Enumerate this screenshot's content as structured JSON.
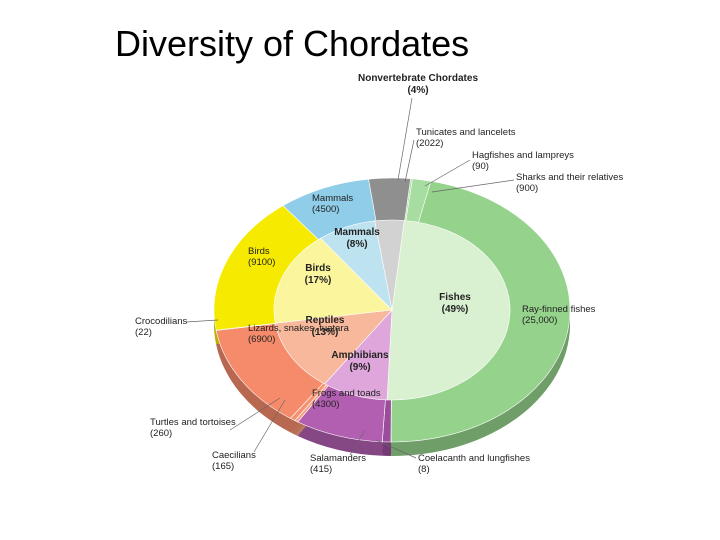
{
  "chart_data": {
    "type": "nested_pie",
    "title": "Diversity of Chordates",
    "inner": {
      "categories": [
        "Fishes",
        "Amphibians",
        "Reptiles",
        "Birds",
        "Mammals",
        "Nonvertebrate Chordates"
      ],
      "values": [
        49,
        9,
        13,
        17,
        8,
        4
      ],
      "value_labels": [
        "(49%)",
        "(9%)",
        "(13%)",
        "(17%)",
        "(8%)",
        "(4%)"
      ],
      "colors": [
        "#d9f0d1",
        "#dfa6dc",
        "#f8b89c",
        "#fbf69e",
        "#bde3f0",
        "#d2d2d2"
      ]
    },
    "outer": {
      "categories": [
        "Hagfishes and lampreys",
        "Sharks and their relatives",
        "Ray-finned fishes",
        "Coelacanth and lungfishes",
        "Salamanders",
        "Frogs and toads",
        "Caecilians",
        "Turtles and tortoises",
        "Lizards, snakes, tuatara",
        "Crocodilians",
        "Birds",
        "Mammals",
        "Tunicates and lancelets"
      ],
      "values": [
        90,
        900,
        25000,
        8,
        415,
        4300,
        165,
        260,
        6900,
        22,
        9100,
        4500,
        2022
      ],
      "value_labels": [
        "(90)",
        "(900)",
        "(25,000)",
        "(8)",
        "(415)",
        "(4300)",
        "(165)",
        "(260)",
        "(6900)",
        "(22)",
        "(9100)",
        "(4500)",
        "(2022)"
      ],
      "colors": [
        "#a8dda2",
        "#a8dda2",
        "#95d28c",
        "#95d28c",
        "#9a4d9a",
        "#b35fb1",
        "#f6a384",
        "#f59272",
        "#f58b6b",
        "#f0805f",
        "#f6eb00",
        "#8fcde9",
        "#8f8f8f"
      ]
    }
  }
}
